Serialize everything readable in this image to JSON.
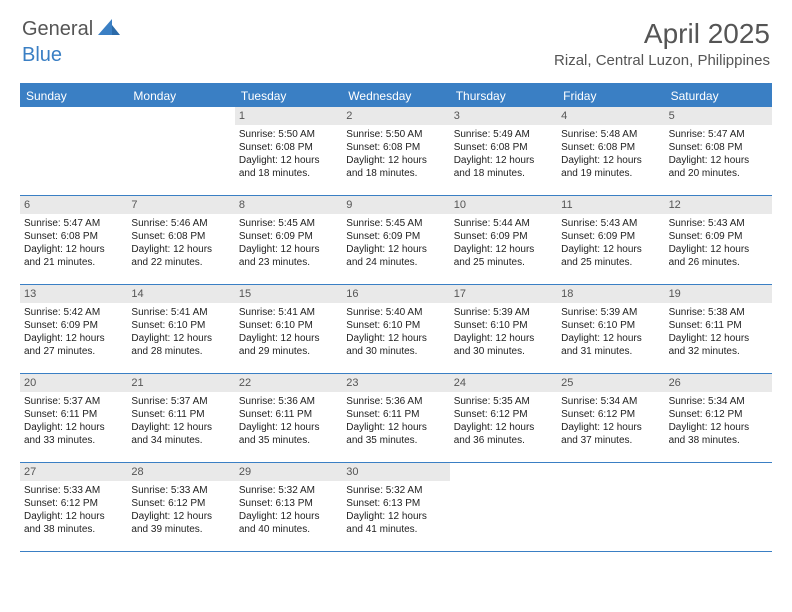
{
  "brand": {
    "part1": "General",
    "part2": "Blue"
  },
  "title": "April 2025",
  "location": "Rizal, Central Luzon, Philippines",
  "colors": {
    "accent": "#3a7fc4",
    "dayBarBg": "#e9e9e9",
    "text": "#333333",
    "background": "#ffffff"
  },
  "daysOfWeek": [
    "Sunday",
    "Monday",
    "Tuesday",
    "Wednesday",
    "Thursday",
    "Friday",
    "Saturday"
  ],
  "weeks": [
    [
      {
        "n": "",
        "empty": true
      },
      {
        "n": "",
        "empty": true
      },
      {
        "n": "1",
        "sunrise": "Sunrise: 5:50 AM",
        "sunset": "Sunset: 6:08 PM",
        "dl1": "Daylight: 12 hours",
        "dl2": "and 18 minutes."
      },
      {
        "n": "2",
        "sunrise": "Sunrise: 5:50 AM",
        "sunset": "Sunset: 6:08 PM",
        "dl1": "Daylight: 12 hours",
        "dl2": "and 18 minutes."
      },
      {
        "n": "3",
        "sunrise": "Sunrise: 5:49 AM",
        "sunset": "Sunset: 6:08 PM",
        "dl1": "Daylight: 12 hours",
        "dl2": "and 18 minutes."
      },
      {
        "n": "4",
        "sunrise": "Sunrise: 5:48 AM",
        "sunset": "Sunset: 6:08 PM",
        "dl1": "Daylight: 12 hours",
        "dl2": "and 19 minutes."
      },
      {
        "n": "5",
        "sunrise": "Sunrise: 5:47 AM",
        "sunset": "Sunset: 6:08 PM",
        "dl1": "Daylight: 12 hours",
        "dl2": "and 20 minutes."
      }
    ],
    [
      {
        "n": "6",
        "sunrise": "Sunrise: 5:47 AM",
        "sunset": "Sunset: 6:08 PM",
        "dl1": "Daylight: 12 hours",
        "dl2": "and 21 minutes."
      },
      {
        "n": "7",
        "sunrise": "Sunrise: 5:46 AM",
        "sunset": "Sunset: 6:08 PM",
        "dl1": "Daylight: 12 hours",
        "dl2": "and 22 minutes."
      },
      {
        "n": "8",
        "sunrise": "Sunrise: 5:45 AM",
        "sunset": "Sunset: 6:09 PM",
        "dl1": "Daylight: 12 hours",
        "dl2": "and 23 minutes."
      },
      {
        "n": "9",
        "sunrise": "Sunrise: 5:45 AM",
        "sunset": "Sunset: 6:09 PM",
        "dl1": "Daylight: 12 hours",
        "dl2": "and 24 minutes."
      },
      {
        "n": "10",
        "sunrise": "Sunrise: 5:44 AM",
        "sunset": "Sunset: 6:09 PM",
        "dl1": "Daylight: 12 hours",
        "dl2": "and 25 minutes."
      },
      {
        "n": "11",
        "sunrise": "Sunrise: 5:43 AM",
        "sunset": "Sunset: 6:09 PM",
        "dl1": "Daylight: 12 hours",
        "dl2": "and 25 minutes."
      },
      {
        "n": "12",
        "sunrise": "Sunrise: 5:43 AM",
        "sunset": "Sunset: 6:09 PM",
        "dl1": "Daylight: 12 hours",
        "dl2": "and 26 minutes."
      }
    ],
    [
      {
        "n": "13",
        "sunrise": "Sunrise: 5:42 AM",
        "sunset": "Sunset: 6:09 PM",
        "dl1": "Daylight: 12 hours",
        "dl2": "and 27 minutes."
      },
      {
        "n": "14",
        "sunrise": "Sunrise: 5:41 AM",
        "sunset": "Sunset: 6:10 PM",
        "dl1": "Daylight: 12 hours",
        "dl2": "and 28 minutes."
      },
      {
        "n": "15",
        "sunrise": "Sunrise: 5:41 AM",
        "sunset": "Sunset: 6:10 PM",
        "dl1": "Daylight: 12 hours",
        "dl2": "and 29 minutes."
      },
      {
        "n": "16",
        "sunrise": "Sunrise: 5:40 AM",
        "sunset": "Sunset: 6:10 PM",
        "dl1": "Daylight: 12 hours",
        "dl2": "and 30 minutes."
      },
      {
        "n": "17",
        "sunrise": "Sunrise: 5:39 AM",
        "sunset": "Sunset: 6:10 PM",
        "dl1": "Daylight: 12 hours",
        "dl2": "and 30 minutes."
      },
      {
        "n": "18",
        "sunrise": "Sunrise: 5:39 AM",
        "sunset": "Sunset: 6:10 PM",
        "dl1": "Daylight: 12 hours",
        "dl2": "and 31 minutes."
      },
      {
        "n": "19",
        "sunrise": "Sunrise: 5:38 AM",
        "sunset": "Sunset: 6:11 PM",
        "dl1": "Daylight: 12 hours",
        "dl2": "and 32 minutes."
      }
    ],
    [
      {
        "n": "20",
        "sunrise": "Sunrise: 5:37 AM",
        "sunset": "Sunset: 6:11 PM",
        "dl1": "Daylight: 12 hours",
        "dl2": "and 33 minutes."
      },
      {
        "n": "21",
        "sunrise": "Sunrise: 5:37 AM",
        "sunset": "Sunset: 6:11 PM",
        "dl1": "Daylight: 12 hours",
        "dl2": "and 34 minutes."
      },
      {
        "n": "22",
        "sunrise": "Sunrise: 5:36 AM",
        "sunset": "Sunset: 6:11 PM",
        "dl1": "Daylight: 12 hours",
        "dl2": "and 35 minutes."
      },
      {
        "n": "23",
        "sunrise": "Sunrise: 5:36 AM",
        "sunset": "Sunset: 6:11 PM",
        "dl1": "Daylight: 12 hours",
        "dl2": "and 35 minutes."
      },
      {
        "n": "24",
        "sunrise": "Sunrise: 5:35 AM",
        "sunset": "Sunset: 6:12 PM",
        "dl1": "Daylight: 12 hours",
        "dl2": "and 36 minutes."
      },
      {
        "n": "25",
        "sunrise": "Sunrise: 5:34 AM",
        "sunset": "Sunset: 6:12 PM",
        "dl1": "Daylight: 12 hours",
        "dl2": "and 37 minutes."
      },
      {
        "n": "26",
        "sunrise": "Sunrise: 5:34 AM",
        "sunset": "Sunset: 6:12 PM",
        "dl1": "Daylight: 12 hours",
        "dl2": "and 38 minutes."
      }
    ],
    [
      {
        "n": "27",
        "sunrise": "Sunrise: 5:33 AM",
        "sunset": "Sunset: 6:12 PM",
        "dl1": "Daylight: 12 hours",
        "dl2": "and 38 minutes."
      },
      {
        "n": "28",
        "sunrise": "Sunrise: 5:33 AM",
        "sunset": "Sunset: 6:12 PM",
        "dl1": "Daylight: 12 hours",
        "dl2": "and 39 minutes."
      },
      {
        "n": "29",
        "sunrise": "Sunrise: 5:32 AM",
        "sunset": "Sunset: 6:13 PM",
        "dl1": "Daylight: 12 hours",
        "dl2": "and 40 minutes."
      },
      {
        "n": "30",
        "sunrise": "Sunrise: 5:32 AM",
        "sunset": "Sunset: 6:13 PM",
        "dl1": "Daylight: 12 hours",
        "dl2": "and 41 minutes."
      },
      {
        "n": "",
        "empty": true
      },
      {
        "n": "",
        "empty": true
      },
      {
        "n": "",
        "empty": true
      }
    ]
  ]
}
